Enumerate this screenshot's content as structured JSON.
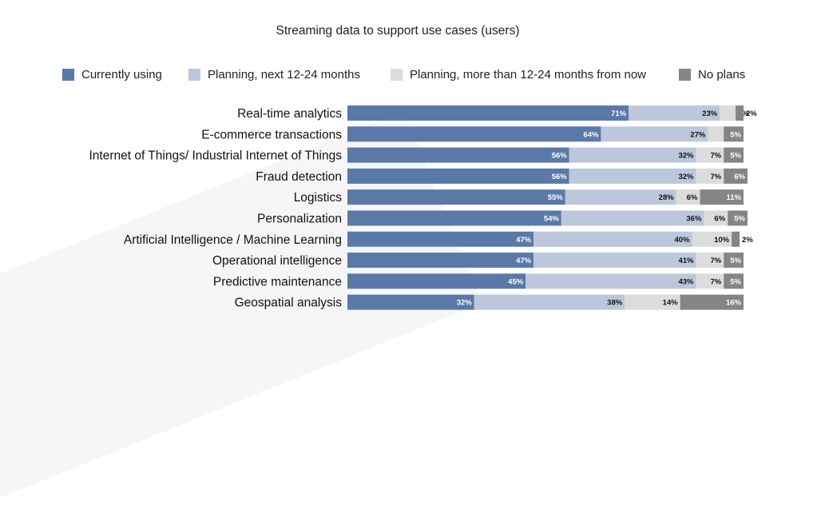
{
  "chart_data": {
    "type": "bar",
    "orientation": "horizontal",
    "stacked": true,
    "title": "Streaming data to support use cases (users)",
    "legend_position": "top",
    "categories": [
      "Real-time analytics",
      "E-commerce transactions",
      "Internet of Things/ Industrial Internet of Things",
      "Fraud detection",
      "Logistics",
      "Personalization",
      "Artificial Intelligence / Machine Learning",
      "Operational intelligence",
      "Predictive maintenance",
      "Geospatial analysis"
    ],
    "series": [
      {
        "name": "Currently using",
        "color": "#5b79a8",
        "values": [
          71,
          64,
          56,
          56,
          55,
          54,
          47,
          47,
          45,
          32
        ]
      },
      {
        "name": "Planning, next 12-24 months",
        "color": "#bcc7dc",
        "values": [
          23,
          27,
          32,
          32,
          28,
          36,
          40,
          41,
          43,
          38
        ]
      },
      {
        "name": "Planning, more than 12-24 months from now",
        "color": "#dcdcdc",
        "values": [
          4,
          4,
          7,
          7,
          6,
          6,
          10,
          7,
          7,
          14
        ]
      },
      {
        "name": "No plans",
        "color": "#858585",
        "values": [
          2,
          5,
          5,
          6,
          11,
          5,
          2,
          5,
          5,
          16
        ]
      }
    ],
    "unit": "%"
  }
}
